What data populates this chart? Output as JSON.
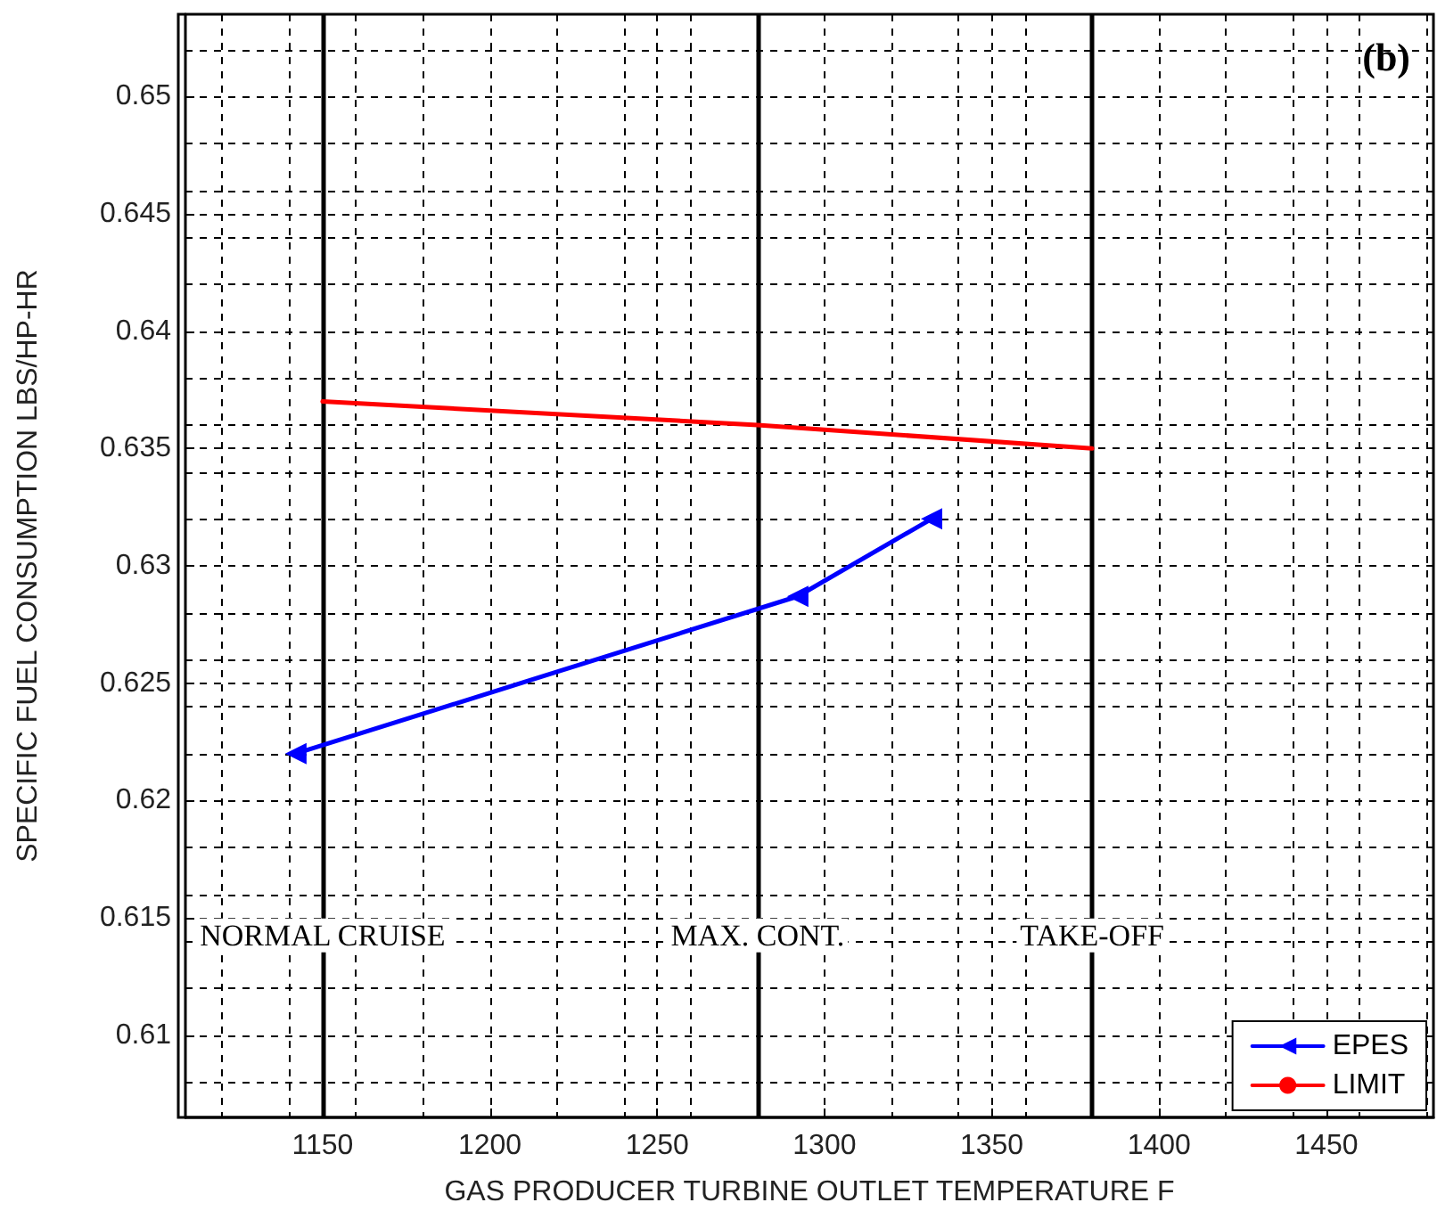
{
  "chart_data": {
    "type": "line",
    "title": "(b)",
    "xlabel": "GAS PRODUCER TURBINE OUTLET TEMPERATURE F",
    "ylabel": "SPECIFIC FUEL CONSUMPTION LBS/HP-HR",
    "xlim": [
      1109,
      1482
    ],
    "xticks": [
      1150,
      1200,
      1250,
      1300,
      1350,
      1400,
      1450
    ],
    "ylim": [
      0.6065,
      0.6535
    ],
    "yticks": [
      0.61,
      0.615,
      0.62,
      0.625,
      0.63,
      0.635,
      0.64,
      0.645,
      0.65
    ],
    "series": [
      {
        "name": "EPES",
        "color": "#0000ff",
        "x": [
          1142,
          1292,
          1332
        ],
        "values": [
          0.622,
          0.6287,
          0.632
        ],
        "marker": "triangle"
      },
      {
        "name": "LIMIT",
        "color": "#ff0000",
        "x": [
          1150,
          1280,
          1380
        ],
        "values": [
          0.637,
          0.636,
          0.635
        ],
        "marker": "none"
      }
    ],
    "ref_lines": [
      {
        "axis": "x",
        "value": 1150,
        "label": "NORMAL CRUISE",
        "color": "#000000"
      },
      {
        "axis": "x",
        "value": 1280,
        "label": "MAX. CONT.",
        "color": "#000000"
      },
      {
        "axis": "x",
        "value": 1380,
        "label": "TAKE-OFF",
        "color": "#000000"
      }
    ],
    "grid": true,
    "legend": "bottom right",
    "line_style": "solid"
  }
}
